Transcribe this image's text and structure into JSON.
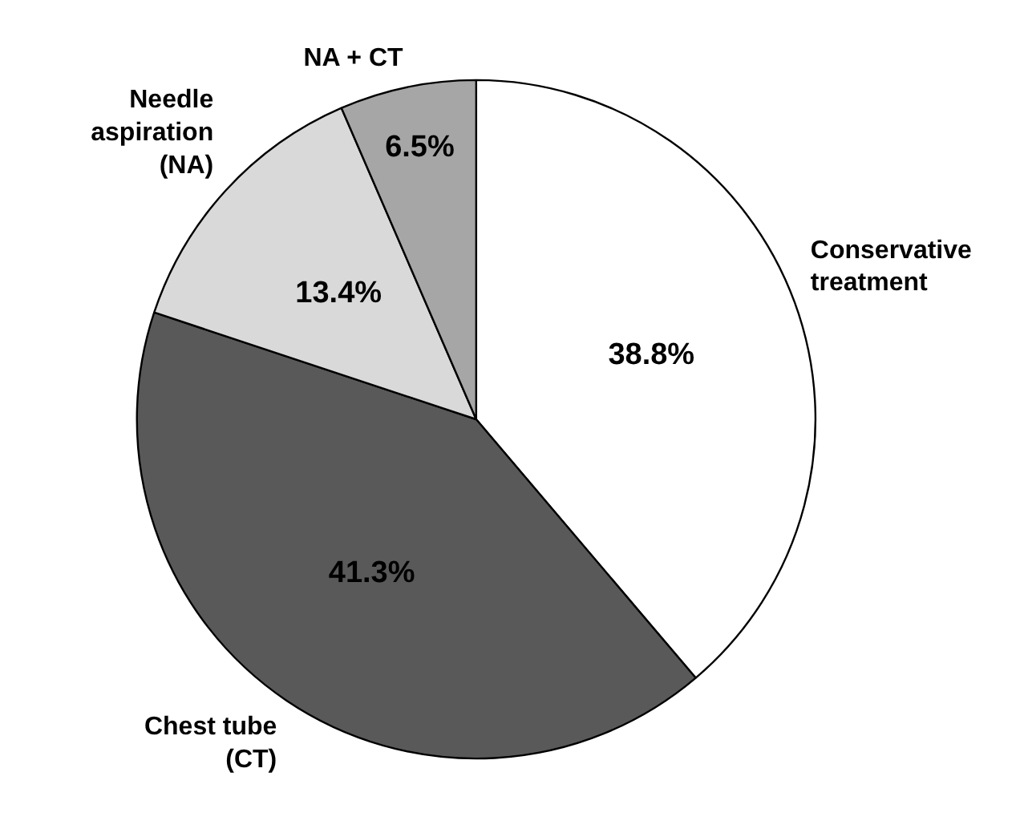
{
  "chart_data": {
    "type": "pie",
    "categories": [
      "Conservative treatment",
      "Chest tube (CT)",
      "Needle aspiration (NA)",
      "NA + CT"
    ],
    "values": [
      38.8,
      41.3,
      13.4,
      6.5
    ],
    "colors": [
      "#ffffff",
      "#595959",
      "#d9d9d9",
      "#a6a6a6"
    ],
    "value_labels": [
      "38.8%",
      "41.3%",
      "13.4%",
      "6.5%"
    ]
  }
}
